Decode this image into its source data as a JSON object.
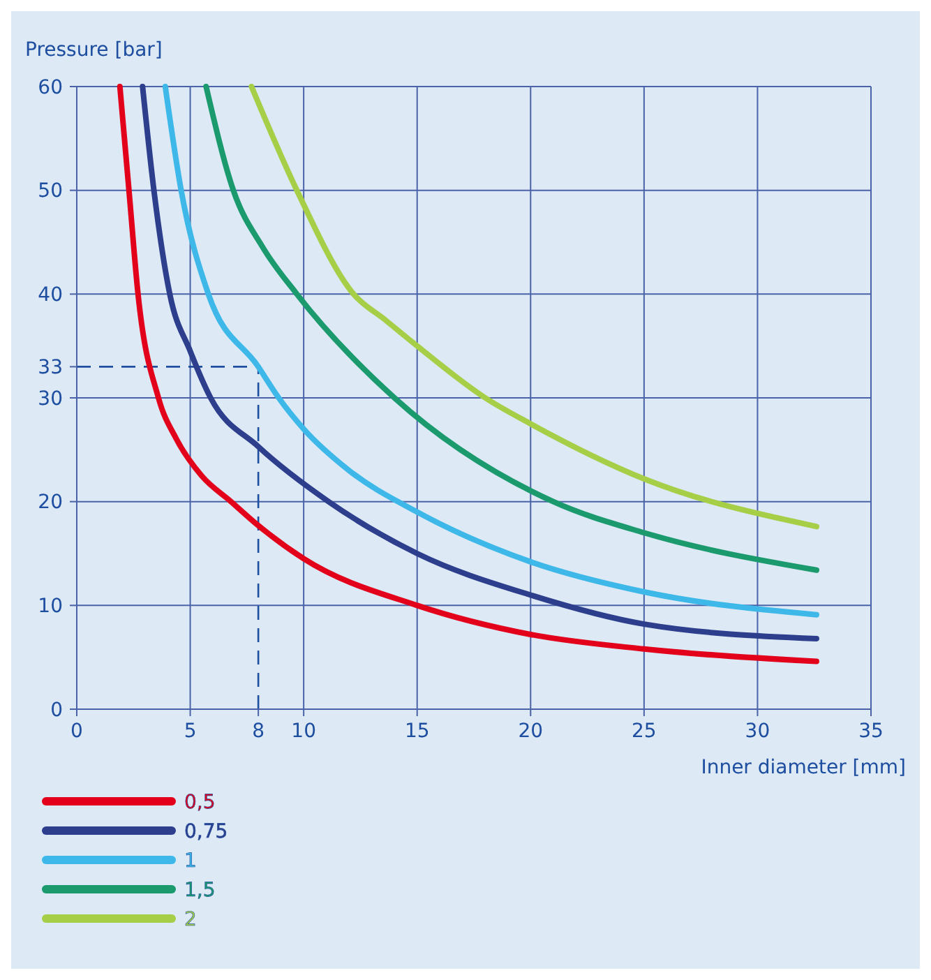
{
  "chart_data": {
    "type": "line",
    "ylabel": "Pressure [bar]",
    "xlabel": "Inner diameter [mm]",
    "xlim": [
      0,
      35
    ],
    "xticks": [
      0,
      5,
      8,
      10,
      15,
      20,
      25,
      30,
      35
    ],
    "ylim": [
      0,
      60
    ],
    "yticks": [
      0,
      10,
      20,
      30,
      33,
      40,
      50,
      60
    ],
    "grid": true,
    "legend": "bottom",
    "marker": "none",
    "line_style": "solid",
    "ref_lines": [
      {
        "axis": "x",
        "value": 8,
        "line_style": "dashed",
        "color": "#1e4ea0"
      },
      {
        "axis": "y",
        "value": 33,
        "line_style": "dashed",
        "color": "#1e4ea0"
      }
    ],
    "series": [
      {
        "name": "0,5",
        "color": "#e3001b",
        "x": [
          1.9,
          2.3,
          2.7,
          3.6,
          4.4,
          5.5,
          6.8,
          8,
          10,
          15,
          20,
          25,
          32.6
        ],
        "values": [
          60,
          50,
          40,
          30,
          26,
          22.5,
          20,
          17.7,
          14.5,
          10,
          7.2,
          5.8,
          4.6
        ]
      },
      {
        "name": "0,75",
        "color": "#2c3e8c",
        "x": [
          2.9,
          3.4,
          4.1,
          5,
          5.9,
          8,
          11.1,
          15,
          20,
          25,
          32.6
        ],
        "values": [
          60,
          50,
          40,
          34.5,
          30,
          25.3,
          20,
          15,
          11,
          8.2,
          6.8
        ]
      },
      {
        "name": "1",
        "color": "#3db8e8",
        "x": [
          3.9,
          4.6,
          5.8,
          8,
          8.9,
          10,
          12,
          15,
          20,
          25,
          32.6
        ],
        "values": [
          60,
          50,
          40,
          33,
          30,
          27,
          23,
          19,
          14.2,
          11.3,
          9.1
        ]
      },
      {
        "name": "1,5",
        "color": "#1b9a6e",
        "x": [
          5.7,
          6.9,
          8.2,
          9.7,
          14,
          21,
          25,
          32.6
        ],
        "values": [
          60,
          50,
          44.5,
          40,
          30,
          20,
          17,
          13.4
        ]
      },
      {
        "name": "2",
        "color": "#a6cf47",
        "x": [
          7.7,
          9.7,
          12.2,
          13.6,
          15,
          18,
          20,
          25,
          32.6
        ],
        "values": [
          60,
          50,
          40,
          37.5,
          35,
          30,
          27.5,
          22.2,
          17.6
        ]
      }
    ]
  }
}
